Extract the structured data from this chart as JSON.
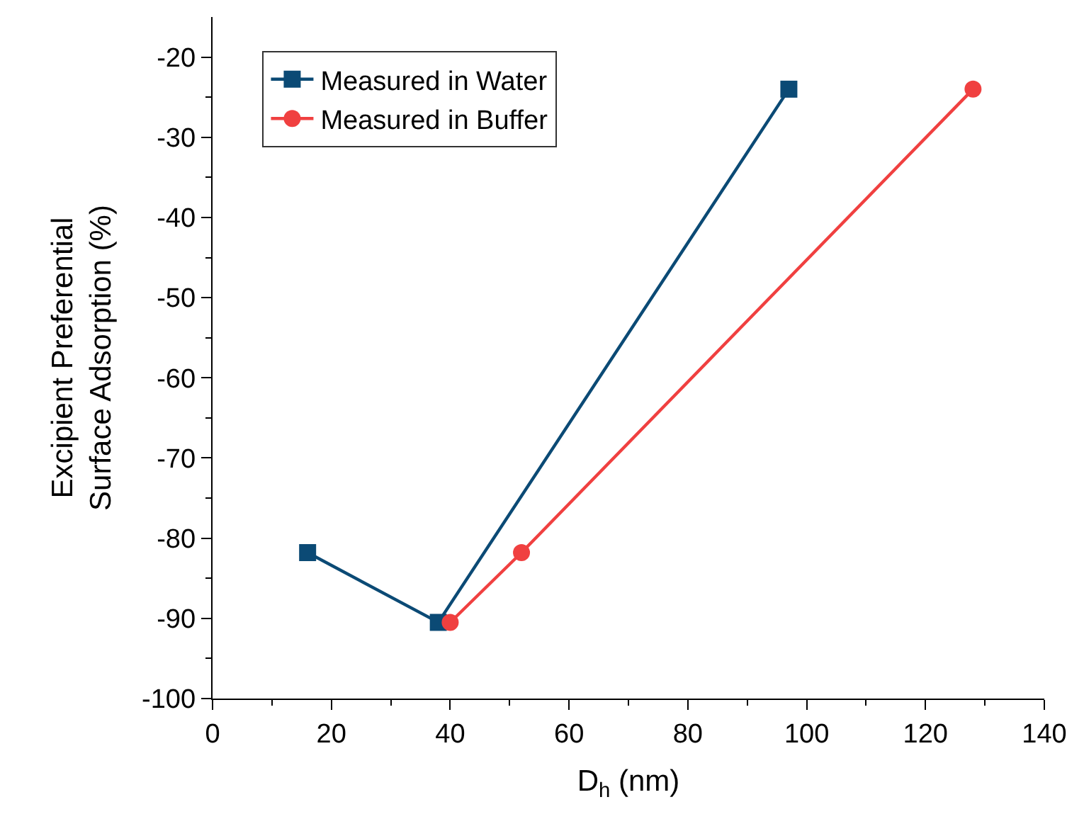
{
  "chart_data": {
    "type": "line",
    "xlabel": "D$_{h}$ (nm)",
    "ylabel": "Excipient Preferential\nSurface Adsorption (%)",
    "xlim": [
      0,
      140
    ],
    "xticks": [
      0,
      20,
      40,
      60,
      80,
      100,
      120,
      140
    ],
    "ylim": [
      -100,
      -15
    ],
    "yticks": [
      -100,
      -90,
      -80,
      -70,
      -60,
      -50,
      -40,
      -30,
      -20
    ],
    "legend": "top left",
    "line_style": "solid",
    "series": [
      {
        "name": "Measured in Water",
        "color": "#0b4a75",
        "marker": "square",
        "x": [
          16,
          38,
          97
        ],
        "values": [
          -81.8,
          -90.5,
          -24
        ]
      },
      {
        "name": "Measured in Buffer",
        "color": "#f04040",
        "marker": "circle",
        "x": [
          40,
          52,
          128
        ],
        "values": [
          -90.5,
          -81.8,
          -24
        ]
      }
    ]
  }
}
